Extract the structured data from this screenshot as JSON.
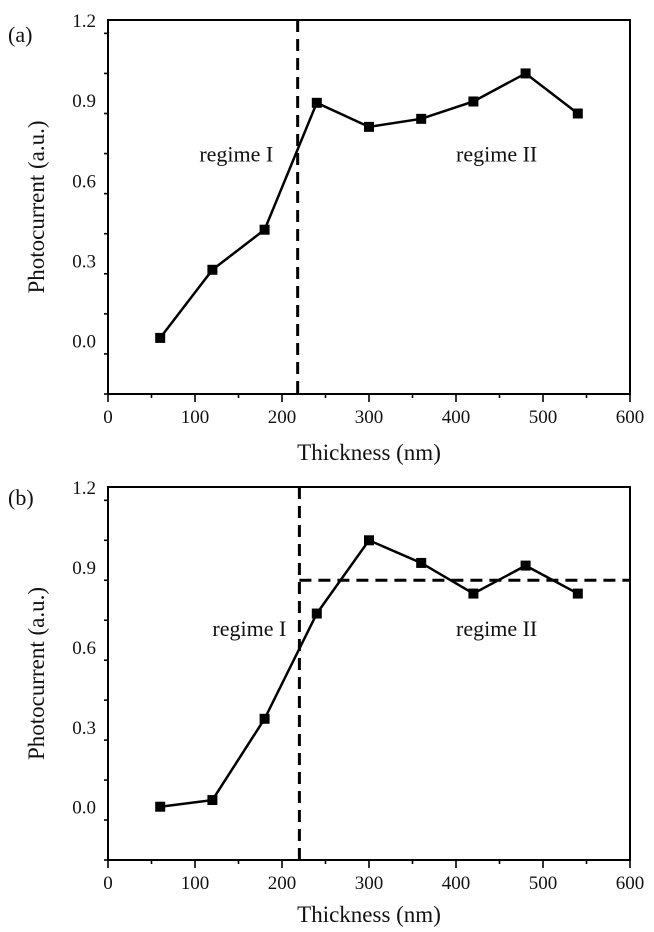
{
  "chart_data": [
    {
      "type": "line",
      "panel_label": "(a)",
      "xlabel": "Thickness (nm)",
      "ylabel": "Photocurrent (a.u.)",
      "xlim": [
        0,
        600
      ],
      "ylim": [
        -0.2,
        1.2
      ],
      "xticks": [
        0,
        100,
        200,
        300,
        400,
        500,
        600
      ],
      "xtick_labels": [
        "0",
        "100",
        "200",
        "300",
        "400",
        "500",
        "600"
      ],
      "yticks": [
        0.0,
        0.3,
        0.6,
        0.9,
        1.2
      ],
      "ytick_labels": [
        "0.0",
        "0.3",
        "0.6",
        "0.9",
        "1.2"
      ],
      "series": [
        {
          "x": [
            60,
            120,
            180,
            240,
            300,
            360,
            420,
            480,
            540
          ],
          "y": [
            0.01,
            0.265,
            0.415,
            0.89,
            0.8,
            0.83,
            0.895,
            1.0,
            0.85
          ]
        }
      ],
      "vline": 218,
      "annotations": [
        {
          "text": "regime I",
          "x": 105,
          "y": 0.67
        },
        {
          "text": "regime II",
          "x": 400,
          "y": 0.67
        }
      ],
      "grid": false
    },
    {
      "type": "line",
      "panel_label": "(b)",
      "xlabel": "Thickness (nm)",
      "ylabel": "Photocurrent (a.u.)",
      "xlim": [
        0,
        600
      ],
      "ylim": [
        -0.2,
        1.2
      ],
      "xticks": [
        0,
        100,
        200,
        300,
        400,
        500,
        600
      ],
      "xtick_labels": [
        "0",
        "100",
        "200",
        "300",
        "400",
        "500",
        "600"
      ],
      "yticks": [
        0.0,
        0.3,
        0.6,
        0.9,
        1.2
      ],
      "ytick_labels": [
        "0.0",
        "0.3",
        "0.6",
        "0.9",
        "1.2"
      ],
      "series": [
        {
          "x": [
            60,
            120,
            180,
            240,
            300,
            360,
            420,
            480,
            540
          ],
          "y": [
            0.0,
            0.025,
            0.33,
            0.725,
            1.0,
            0.915,
            0.8,
            0.905,
            0.8
          ]
        }
      ],
      "vline": 220,
      "hline": {
        "y": 0.85,
        "x_from": 220,
        "x_to": 600
      },
      "annotations": [
        {
          "text": "regime I",
          "x": 120,
          "y": 0.64
        },
        {
          "text": "regime II",
          "x": 400,
          "y": 0.64
        }
      ],
      "grid": false
    }
  ]
}
